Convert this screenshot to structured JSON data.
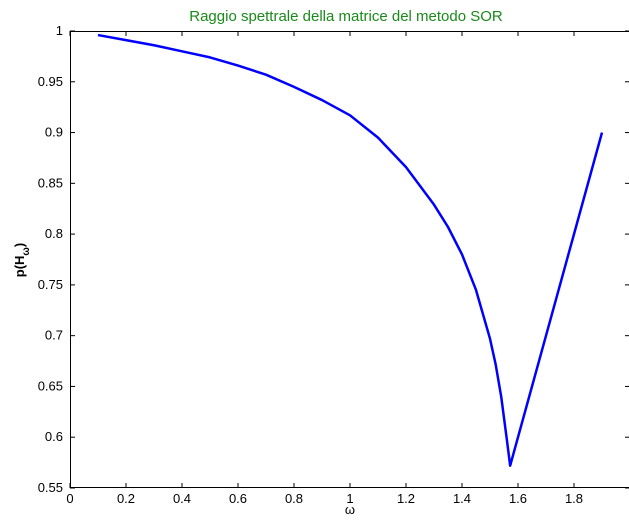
{
  "colors": {
    "title": "#1a8a1a",
    "line": "#0000ff",
    "axes": "#000000"
  },
  "chart_data": {
    "type": "line",
    "title": "Raggio spettrale della matrice del metodo SOR",
    "xlabel": "ω",
    "ylabel": "p(H",
    "ylabel_subscript": "ω",
    "ylabel_close": ")",
    "xlim": [
      0,
      2
    ],
    "ylim": [
      0.55,
      1
    ],
    "xticks": [
      0,
      0.2,
      0.4,
      0.6,
      0.8,
      1,
      1.2,
      1.4,
      1.6,
      1.8
    ],
    "xtick_labels": [
      "0",
      "0.2",
      "0.4",
      "0.6",
      "0.8",
      "1",
      "1.2",
      "1.4",
      "1.6",
      "1.8"
    ],
    "yticks": [
      0.55,
      0.6,
      0.65,
      0.7,
      0.75,
      0.8,
      0.85,
      0.9,
      0.95,
      1
    ],
    "ytick_labels": [
      "0.55",
      "0.6",
      "0.65",
      "0.7",
      "0.75",
      "0.8",
      "0.85",
      "0.9",
      "0.95",
      "1"
    ],
    "grid": false,
    "series": [
      {
        "x": [
          0.1,
          0.2,
          0.3,
          0.4,
          0.5,
          0.6,
          0.7,
          0.8,
          0.9,
          1.0,
          1.1,
          1.2,
          1.3,
          1.35,
          1.4,
          1.45,
          1.5,
          1.52,
          1.54,
          1.56,
          1.572,
          1.6,
          1.7,
          1.8,
          1.9
        ],
        "y": [
          0.996,
          0.991,
          0.986,
          0.98,
          0.974,
          0.966,
          0.957,
          0.945,
          0.932,
          0.917,
          0.895,
          0.866,
          0.829,
          0.807,
          0.78,
          0.745,
          0.697,
          0.672,
          0.64,
          0.598,
          0.572,
          0.6,
          0.7,
          0.8,
          0.9
        ]
      }
    ]
  }
}
